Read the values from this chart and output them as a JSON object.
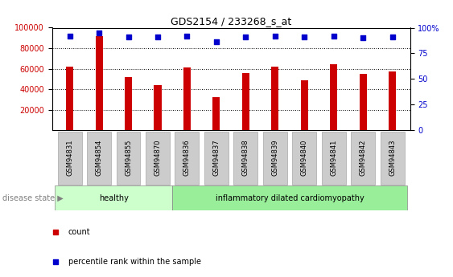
{
  "title": "GDS2154 / 233268_s_at",
  "categories": [
    "GSM94831",
    "GSM94854",
    "GSM94855",
    "GSM94870",
    "GSM94836",
    "GSM94837",
    "GSM94838",
    "GSM94839",
    "GSM94840",
    "GSM94841",
    "GSM94842",
    "GSM94843"
  ],
  "counts": [
    62000,
    92000,
    52000,
    44000,
    61000,
    32000,
    56000,
    62000,
    49000,
    64000,
    55000,
    57000
  ],
  "percentiles": [
    92,
    95,
    91,
    91,
    92,
    86,
    91,
    92,
    91,
    92,
    90,
    91
  ],
  "bar_color": "#cc0000",
  "dot_color": "#0000cc",
  "ylim_left": [
    0,
    100000
  ],
  "ylim_right": [
    0,
    100
  ],
  "yticks_left": [
    20000,
    40000,
    60000,
    80000,
    100000
  ],
  "yticks_right": [
    0,
    25,
    50,
    75,
    100
  ],
  "groups": [
    {
      "label": "healthy",
      "start": 0,
      "end": 3,
      "color": "#ccffcc"
    },
    {
      "label": "inflammatory dilated cardiomyopathy",
      "start": 4,
      "end": 11,
      "color": "#99ee99"
    }
  ],
  "disease_state_label": "disease state ▶",
  "legend_items": [
    {
      "label": "count",
      "color": "#cc0000"
    },
    {
      "label": "percentile rank within the sample",
      "color": "#0000cc"
    }
  ],
  "tick_color_left": "#cc0000",
  "tick_color_right": "#0000cc",
  "xtick_box_color": "#cccccc",
  "figsize": [
    5.63,
    3.45
  ],
  "dpi": 100
}
